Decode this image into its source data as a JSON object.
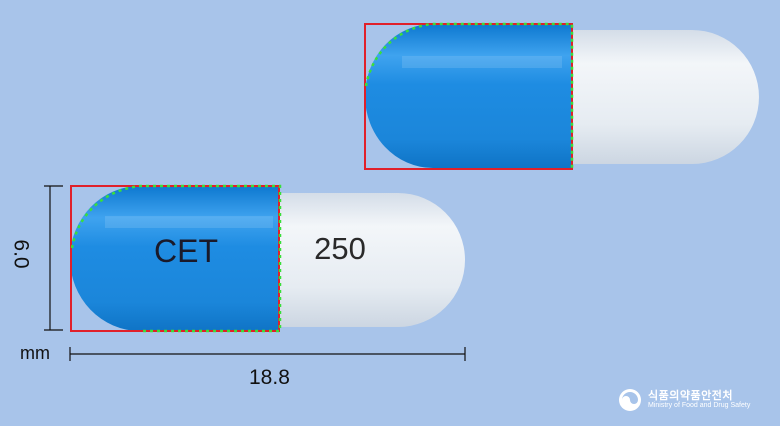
{
  "capsules": [
    {
      "id": "back",
      "left_imprint": "",
      "right_imprint": ""
    },
    {
      "id": "front",
      "left_imprint": "CET",
      "right_imprint": "250"
    }
  ],
  "measurements": {
    "height": "6.0",
    "unit": "mm",
    "length": "18.8"
  },
  "watermark": {
    "korean": "식품의약품안전처",
    "english": "Ministry of Food and Drug Safety"
  },
  "colors": {
    "background": "#a8c4ea",
    "cap_blue": "#1f8de0",
    "body_white": "#e9eef4",
    "outline_red": "#e0202a",
    "edge_green": "#3adf3a"
  }
}
